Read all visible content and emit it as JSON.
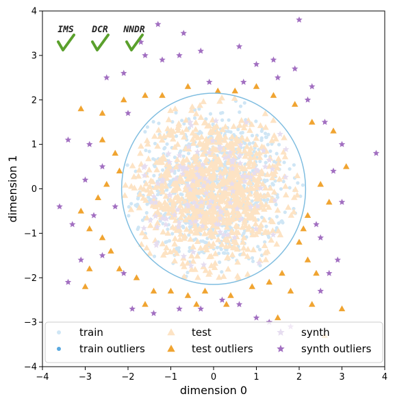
{
  "chart_data": {
    "type": "scatter",
    "title": "",
    "xlabel": "dimension 0",
    "ylabel": "dimension 1",
    "xlim": [
      -4,
      4
    ],
    "ylim": [
      -4,
      4
    ],
    "xticks": [
      -4,
      -3,
      -2,
      -1,
      0,
      1,
      2,
      3,
      4
    ],
    "yticks": [
      -4,
      -3,
      -2,
      -1,
      0,
      1,
      2,
      3,
      4
    ],
    "xtick_labels": [
      "−4",
      "−3",
      "−2",
      "−1",
      "0",
      "1",
      "2",
      "3",
      "4"
    ],
    "ytick_labels": [
      "−4",
      "−3",
      "−2",
      "−1",
      "0",
      "1",
      "2",
      "3",
      "4"
    ],
    "grid": false,
    "legend_position": "lower-center",
    "circle": {
      "center": [
        0,
        0
      ],
      "radius": 2.15,
      "color": "#7fbde0"
    },
    "series": [
      {
        "name": "train",
        "marker": "circle",
        "color": "#cfe6f5",
        "points": "generated",
        "count": 900,
        "max_radius": 2.1
      },
      {
        "name": "train outliers",
        "marker": "circle",
        "color": "#5aa9e0",
        "points": []
      },
      {
        "name": "test",
        "marker": "triangle",
        "color": "#fde3c4",
        "points": "generated",
        "count": 900,
        "max_radius": 2.1
      },
      {
        "name": "test outliers",
        "marker": "triangle",
        "color": "#f0a431",
        "points": [
          [
            -3.1,
            1.8
          ],
          [
            -2.6,
            1.7
          ],
          [
            -2.1,
            2.0
          ],
          [
            -1.6,
            2.1
          ],
          [
            -1.2,
            2.1
          ],
          [
            -0.6,
            2.3
          ],
          [
            0.1,
            2.2
          ],
          [
            0.5,
            2.2
          ],
          [
            1.0,
            2.3
          ],
          [
            1.4,
            2.1
          ],
          [
            1.9,
            1.9
          ],
          [
            2.3,
            1.5
          ],
          [
            2.8,
            1.3
          ],
          [
            3.1,
            0.5
          ],
          [
            2.5,
            0.1
          ],
          [
            2.7,
            -0.3
          ],
          [
            2.2,
            -0.6
          ],
          [
            2.1,
            -0.9
          ],
          [
            2.0,
            -1.2
          ],
          [
            2.2,
            -1.6
          ],
          [
            1.6,
            -1.9
          ],
          [
            1.3,
            -2.1
          ],
          [
            0.9,
            -2.2
          ],
          [
            0.4,
            -2.4
          ],
          [
            -0.2,
            -2.3
          ],
          [
            -0.6,
            -2.4
          ],
          [
            -1.0,
            -2.3
          ],
          [
            -1.4,
            -2.3
          ],
          [
            -1.8,
            -2.0
          ],
          [
            -2.2,
            -1.8
          ],
          [
            -2.4,
            -1.4
          ],
          [
            -2.6,
            -1.1
          ],
          [
            -2.9,
            -0.9
          ],
          [
            -3.1,
            -0.5
          ],
          [
            -2.7,
            -0.2
          ],
          [
            -2.5,
            0.1
          ],
          [
            -2.2,
            0.4
          ],
          [
            -2.3,
            0.8
          ],
          [
            -2.6,
            1.1
          ],
          [
            -2.9,
            -1.8
          ],
          [
            -3.0,
            -2.2
          ],
          [
            1.5,
            -2.9
          ],
          [
            2.3,
            -2.6
          ],
          [
            2.6,
            -3.3
          ],
          [
            3.0,
            -2.7
          ],
          [
            -1.6,
            -2.6
          ],
          [
            0.3,
            -2.6
          ],
          [
            -0.4,
            -2.6
          ],
          [
            1.8,
            -2.3
          ],
          [
            2.4,
            -1.9
          ]
        ]
      },
      {
        "name": "synth",
        "marker": "star",
        "color": "#e6ddf0",
        "points": "generated",
        "count": 120,
        "max_radius": 2.0
      },
      {
        "name": "synth outliers",
        "marker": "star",
        "color": "#a26fc1",
        "points": [
          [
            -1.7,
            3.3
          ],
          [
            -0.8,
            3.0
          ],
          [
            -1.3,
            3.7
          ],
          [
            -0.7,
            3.5
          ],
          [
            -1.2,
            2.9
          ],
          [
            -0.1,
            2.4
          ],
          [
            0.7,
            2.4
          ],
          [
            1.0,
            2.8
          ],
          [
            2.0,
            3.8
          ],
          [
            1.5,
            2.5
          ],
          [
            1.9,
            2.7
          ],
          [
            2.3,
            2.3
          ],
          [
            -2.1,
            2.6
          ],
          [
            -2.5,
            2.5
          ],
          [
            -3.4,
            1.1
          ],
          [
            -2.9,
            1.0
          ],
          [
            -2.6,
            0.5
          ],
          [
            -3.0,
            0.2
          ],
          [
            -3.3,
            -0.8
          ],
          [
            -2.8,
            -0.6
          ],
          [
            -2.3,
            -0.4
          ],
          [
            -2.6,
            -1.5
          ],
          [
            -3.1,
            -1.6
          ],
          [
            -2.1,
            -1.9
          ],
          [
            -1.9,
            -2.7
          ],
          [
            -1.4,
            -2.8
          ],
          [
            -0.8,
            -2.7
          ],
          [
            -0.3,
            -2.7
          ],
          [
            0.2,
            -2.5
          ],
          [
            0.6,
            -2.6
          ],
          [
            1.0,
            -2.9
          ],
          [
            1.3,
            -3.0
          ],
          [
            1.8,
            -3.1
          ],
          [
            2.5,
            -2.3
          ],
          [
            2.7,
            -1.9
          ],
          [
            2.9,
            -1.6
          ],
          [
            3.0,
            -0.3
          ],
          [
            2.8,
            0.4
          ],
          [
            3.0,
            1.0
          ],
          [
            2.6,
            1.5
          ],
          [
            3.8,
            0.8
          ],
          [
            2.4,
            -0.8
          ],
          [
            2.5,
            -1.1
          ],
          [
            -2.0,
            1.7
          ],
          [
            -1.6,
            3.0
          ],
          [
            -0.3,
            3.1
          ],
          [
            0.6,
            3.2
          ],
          [
            1.4,
            2.9
          ],
          [
            2.2,
            2.0
          ],
          [
            -3.6,
            -0.4
          ],
          [
            -3.4,
            -2.1
          ]
        ]
      }
    ],
    "legend": [
      {
        "label": "train",
        "marker": "circle",
        "color": "#cfe6f5"
      },
      {
        "label": "train outliers",
        "marker": "circle",
        "color": "#5aa9e0"
      },
      {
        "label": "test",
        "marker": "triangle",
        "color": "#fde3c4"
      },
      {
        "label": "test outliers",
        "marker": "triangle",
        "color": "#f0a431"
      },
      {
        "label": "synth",
        "marker": "star",
        "color": "#e6ddf0"
      },
      {
        "label": "synth outliers",
        "marker": "star",
        "color": "#a26fc1"
      }
    ],
    "badges": [
      {
        "label": "IMS",
        "check_color": "#5aa02c",
        "icon": "check-icon"
      },
      {
        "label": "DCR",
        "check_color": "#5aa02c",
        "icon": "check-icon"
      },
      {
        "label": "NNDR",
        "check_color": "#5aa02c",
        "icon": "check-icon"
      }
    ]
  }
}
